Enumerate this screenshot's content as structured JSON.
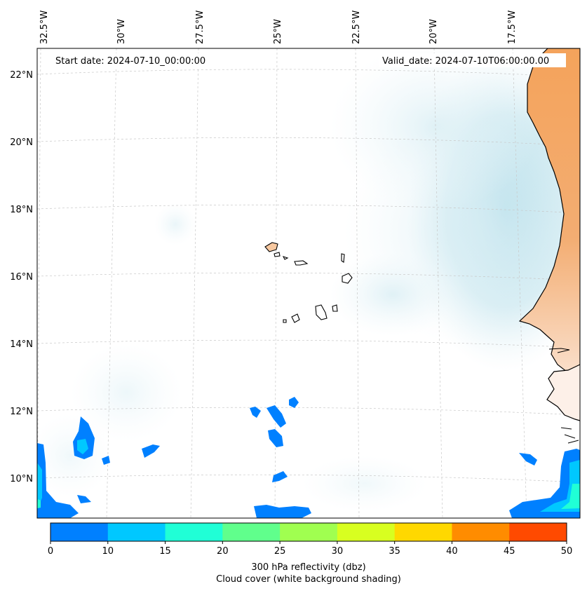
{
  "map": {
    "start_label": "Start date: 2024-07-10_00:00:00",
    "valid_label": "Valid_date: 2024-07-10T06:00:00.00",
    "lon_ticks": [
      "32.5°W",
      "30°W",
      "27.5°W",
      "25°W",
      "22.5°W",
      "20°W",
      "17.5°W"
    ],
    "lat_ticks": [
      "22°N",
      "20°N",
      "18°N",
      "16°N",
      "14°N",
      "12°N",
      "10°N"
    ],
    "extent": {
      "lon_min": -32.6,
      "lon_max": -15.2,
      "lat_min": 9.0,
      "lat_max": 22.7
    },
    "land_color": "#f4a35b",
    "ocean_color": "#ffffff"
  },
  "colorbar": {
    "levels": [
      "0",
      "10",
      "15",
      "20",
      "25",
      "30",
      "35",
      "40",
      "45",
      "50"
    ],
    "colors": [
      "#0080ff",
      "#00c8ff",
      "#20ffd6",
      "#60ff8c",
      "#a0ff50",
      "#d8ff20",
      "#ffd800",
      "#ff8c00",
      "#ff4a00"
    ],
    "label_line1": "300 hPa reflectivity (dbz)",
    "label_line2": "Cloud cover (white background shading)"
  }
}
